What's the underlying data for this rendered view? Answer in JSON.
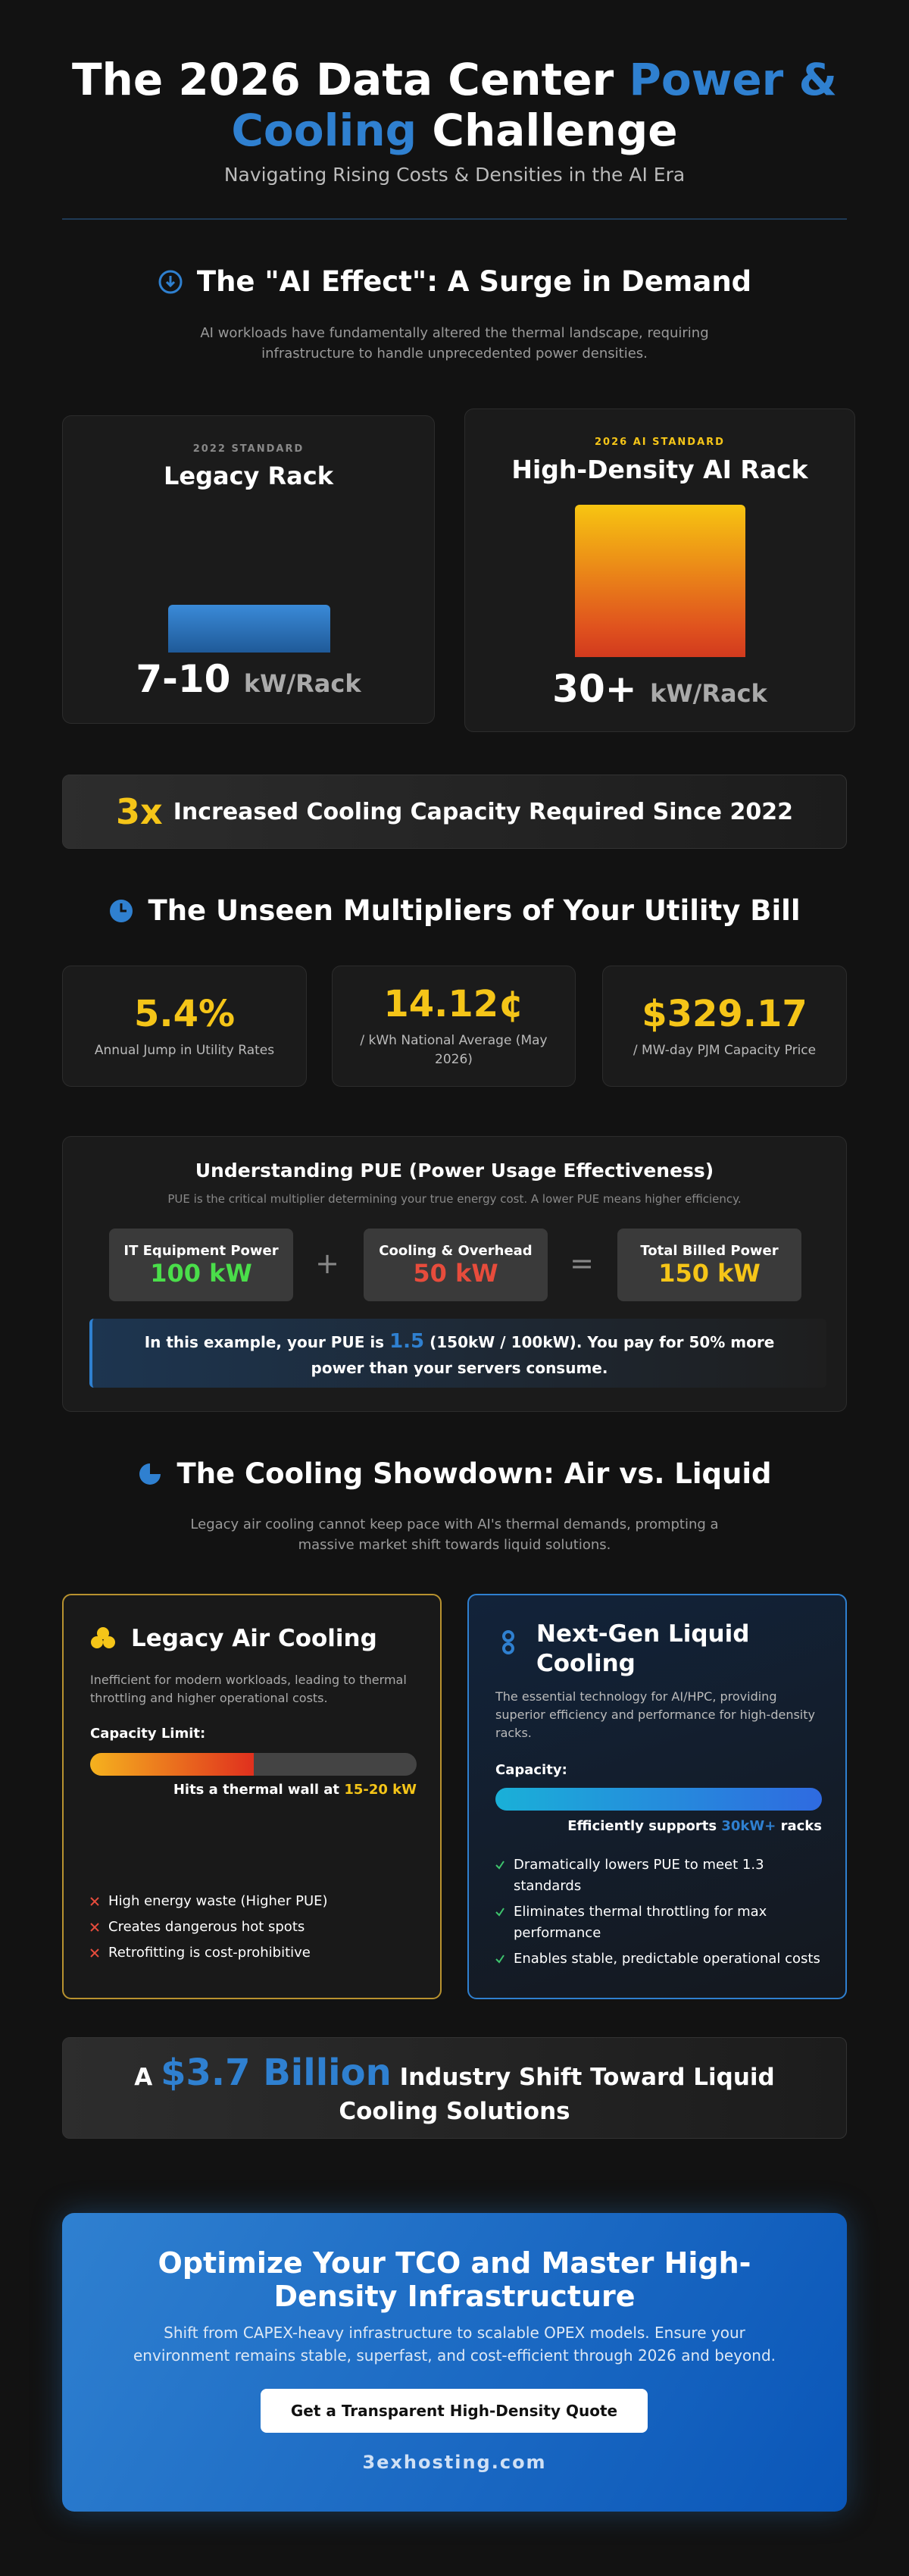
{
  "header": {
    "title": {
      "before": "The 2026 Data Center",
      "highlight": "Power & Cooling",
      "after": "Challenge"
    },
    "subtitle": "Navigating Rising Costs & Densities in the AI Era"
  },
  "demand": {
    "heading": "The \"AI Effect\": A Surge in Demand",
    "description": "AI workloads have fundamentally altered the thermal landscape, requiring infrastructure to handle unprecedented power densities.",
    "legacy": {
      "label": "2022 STANDARD",
      "title": "Legacy Rack",
      "value": "7-10",
      "unit": "kW/Rack"
    },
    "ai": {
      "label": "2026 AI STANDARD",
      "title": "High-Density AI Rack",
      "value": "30+",
      "unit": "kW/Rack"
    },
    "banner": {
      "value": "3x",
      "text": "Increased Cooling Capacity Required Since 2022"
    }
  },
  "utility": {
    "heading": "The Unseen Multipliers of Your Utility Bill",
    "stats": [
      {
        "value": "5.4%",
        "label": "Annual Jump in Utility Rates"
      },
      {
        "value": "14.12¢",
        "label": "/ kWh National Average (May 2026)"
      },
      {
        "value": "$329.17",
        "label": "/ MW-day PJM Capacity Price"
      }
    ],
    "pue": {
      "title": "Understanding PUE (Power Usage Effectiveness)",
      "subtitle": "PUE is the critical multiplier determining your true energy cost. A lower PUE means higher efficiency.",
      "items": [
        {
          "label": "IT Equipment Power",
          "value": "100 kW"
        },
        {
          "label": "Cooling & Overhead",
          "value": "50 kW"
        },
        {
          "label": "Total Billed Power",
          "value": "150 kW"
        }
      ],
      "operators": [
        "+",
        "="
      ],
      "note": {
        "lead": "In this example, your PUE is",
        "value": "1.5",
        "rest": "(150kW / 100kW). You pay for 50% more power than your servers consume."
      }
    }
  },
  "cooling": {
    "heading": "The Cooling Showdown: Air vs. Liquid",
    "description": "Legacy air cooling cannot keep pace with AI's thermal demands, prompting a massive market shift towards liquid solutions.",
    "air": {
      "title": "Legacy Air Cooling",
      "description": "Inefficient for modern workloads, leading to thermal throttling and higher operational costs.",
      "capacity_label": "Capacity Limit:",
      "capacity_note": {
        "lead": "Hits a thermal wall at",
        "highlight": "15-20 kW"
      },
      "items": [
        "High energy waste (Higher PUE)",
        "Creates dangerous hot spots",
        "Retrofitting is cost-prohibitive"
      ]
    },
    "liquid": {
      "title": "Next-Gen Liquid Cooling",
      "description": "The essential technology for AI/HPC, providing superior efficiency and performance for high-density racks.",
      "capacity_label": "Capacity:",
      "capacity_note": {
        "lead": "Efficiently supports",
        "highlight": "30kW+",
        "tail": "racks"
      },
      "items": [
        "Dramatically lowers PUE to meet 1.3 standards",
        "Eliminates thermal throttling for max performance",
        "Enables stable, predictable operational costs"
      ]
    }
  },
  "shift": {
    "lead": "A",
    "value": "$3.7 Billion",
    "text": "Industry Shift Toward Liquid Cooling Solutions"
  },
  "cta": {
    "title": "Optimize Your TCO and Master High-Density Infrastructure",
    "description": "Shift from CAPEX-heavy infrastructure to scalable OPEX models. Ensure your environment remains stable, superfast, and cost-efficient through 2026 and beyond.",
    "button": "Get a Transparent High-Density Quote",
    "site": "3exhosting.com"
  }
}
